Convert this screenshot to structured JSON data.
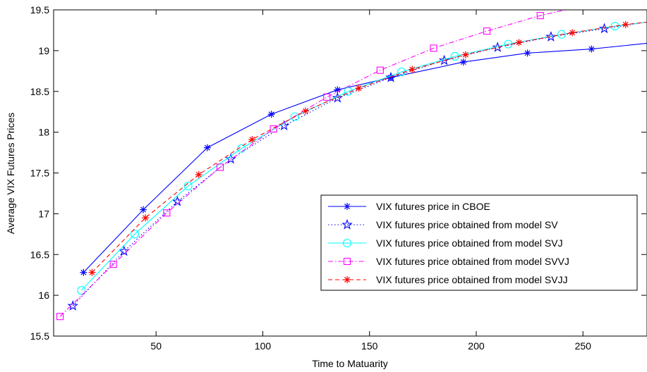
{
  "chart_data": {
    "type": "line",
    "title": "",
    "xlabel": "Time to Matuarity",
    "ylabel": "Average VIX Futures Prices",
    "xlim": [
      2,
      280
    ],
    "ylim": [
      15.5,
      19.5
    ],
    "xticks": [
      "50",
      "100",
      "150",
      "200",
      "250"
    ],
    "yticks": [
      "15.5",
      "16",
      "16.5",
      "17",
      "17.5",
      "18",
      "18.5",
      "19",
      "19.5"
    ],
    "grid": false,
    "legend_position": "lower-right",
    "series": [
      {
        "name": "VIX futures price in CBOE",
        "color": "#0000ff",
        "line": "solid",
        "marker": "asterisk",
        "x": [
          16,
          44,
          74,
          104,
          135,
          160,
          194,
          224,
          254,
          280
        ],
        "y": [
          16.28,
          17.05,
          17.81,
          18.22,
          18.52,
          18.67,
          18.86,
          18.97,
          19.02,
          19.09
        ],
        "marker_x": [
          16,
          44,
          74,
          104,
          135,
          160,
          194,
          224,
          254
        ]
      },
      {
        "name": "VIX futures price obtained from model SV",
        "color": "#0000ff",
        "line": "dotted",
        "marker": "star",
        "x": [
          11,
          35,
          60,
          85,
          110,
          135,
          160,
          185,
          210,
          235,
          260,
          280
        ],
        "y": [
          15.87,
          16.54,
          17.15,
          17.67,
          18.08,
          18.42,
          18.67,
          18.88,
          19.04,
          19.17,
          19.27,
          19.35
        ],
        "marker_x": [
          11,
          35,
          60,
          85,
          110,
          135,
          160,
          185,
          210,
          235,
          260
        ]
      },
      {
        "name": "VIX futures price obtained from model SVJ",
        "color": "#00ffff",
        "line": "solid",
        "marker": "circle",
        "x": [
          15,
          40,
          65,
          90,
          115,
          140,
          165,
          190,
          215,
          240,
          265,
          280
        ],
        "y": [
          16.06,
          16.75,
          17.34,
          17.8,
          18.19,
          18.5,
          18.74,
          18.93,
          19.08,
          19.2,
          19.3,
          19.35
        ],
        "marker_x": [
          15,
          40,
          65,
          90,
          115,
          140,
          165,
          190,
          215,
          240,
          265
        ]
      },
      {
        "name": "VIX futures price obtained from model SVVJ",
        "color": "#ff00ff",
        "line": "dashdot",
        "marker": "square",
        "x": [
          5,
          30,
          55,
          80,
          105,
          130,
          155,
          180,
          205,
          230,
          250
        ],
        "y": [
          15.74,
          16.38,
          17.01,
          17.57,
          18.04,
          18.43,
          18.76,
          19.03,
          19.24,
          19.43,
          19.55
        ],
        "marker_x": [
          5,
          30,
          55,
          80,
          105,
          130,
          155,
          180,
          205,
          230
        ]
      },
      {
        "name": "VIX futures price obtained from model SVJJ",
        "color": "#ff0000",
        "line": "dashed",
        "marker": "asterisk",
        "x": [
          20,
          45,
          70,
          95,
          120,
          145,
          170,
          195,
          220,
          245,
          270,
          280
        ],
        "y": [
          16.28,
          16.95,
          17.48,
          17.91,
          18.26,
          18.54,
          18.77,
          18.95,
          19.1,
          19.22,
          19.32,
          19.35
        ],
        "marker_x": [
          20,
          45,
          70,
          95,
          120,
          145,
          170,
          195,
          220,
          245,
          270
        ]
      }
    ]
  }
}
